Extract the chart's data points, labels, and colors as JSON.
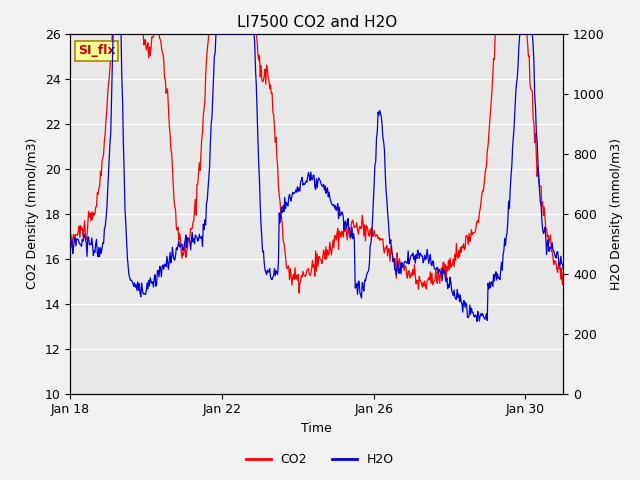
{
  "title": "LI7500 CO2 and H2O",
  "xlabel": "Time",
  "ylabel_left": "CO2 Density (mmol/m3)",
  "ylabel_right": "H2O Density (mmol/m3)",
  "co2_color": "#ff0000",
  "h2o_color": "#0000dd",
  "ylim_left": [
    10,
    26
  ],
  "ylim_right": [
    0,
    1200
  ],
  "plot_bg_color": "#e8e8e8",
  "fig_bg_color": "#f2f2f2",
  "grid_color": "#ffffff",
  "annotation_text": "SI_flx",
  "annotation_bg": "#ffff99",
  "annotation_border": "#aa8800",
  "x_tick_labels": [
    "Jan 18",
    "Jan 22",
    "Jan 26",
    "Jan 30"
  ],
  "x_tick_positions": [
    0,
    4,
    8,
    12
  ],
  "yticks_left": [
    10,
    12,
    14,
    16,
    18,
    20,
    22,
    24,
    26
  ],
  "yticks_right": [
    0,
    200,
    400,
    600,
    800,
    1000,
    1200
  ],
  "title_fontsize": 11,
  "label_fontsize": 9,
  "tick_fontsize": 9,
  "legend_fontsize": 9,
  "figsize": [
    6.4,
    4.8
  ],
  "dpi": 100,
  "n_days": 13,
  "seed": 42
}
